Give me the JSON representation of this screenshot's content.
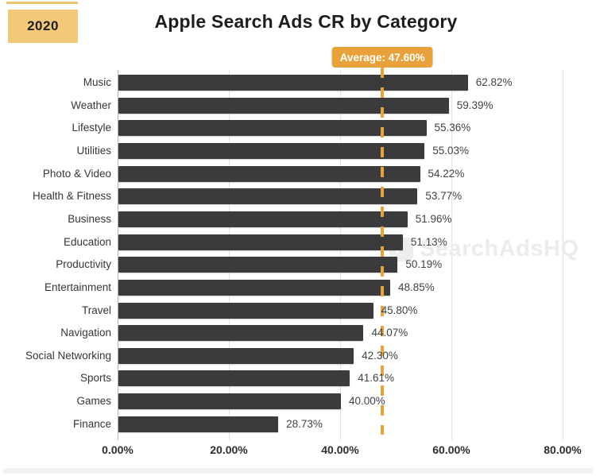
{
  "header": {
    "year_badge": "2020",
    "title": "Apple Search Ads CR by Category"
  },
  "average_badge": {
    "label": "Average: 47.60%"
  },
  "watermark": {
    "text": "SearchAdsHQ"
  },
  "chart_data": {
    "type": "bar",
    "orientation": "horizontal",
    "title": "Apple Search Ads CR by Category",
    "categories": [
      "Music",
      "Weather",
      "Lifestyle",
      "Utilities",
      "Photo & Video",
      "Health & Fitness",
      "Business",
      "Education",
      "Productivity",
      "Entertainment",
      "Travel",
      "Navigation",
      "Social Networking",
      "Sports",
      "Games",
      "Finance"
    ],
    "values": [
      62.82,
      59.39,
      55.36,
      55.03,
      54.22,
      53.77,
      51.96,
      51.13,
      50.19,
      48.85,
      45.8,
      44.07,
      42.3,
      41.61,
      40.0,
      28.73
    ],
    "value_labels": [
      "62.82%",
      "59.39%",
      "55.36%",
      "55.03%",
      "54.22%",
      "53.77%",
      "51.96%",
      "51.13%",
      "50.19%",
      "48.85%",
      "45.80%",
      "44.07%",
      "42.30%",
      "41.61%",
      "40.00%",
      "28.73%"
    ],
    "average": 47.6,
    "average_label": "Average: 47.60%",
    "x_ticks": [
      {
        "label": "0.00%",
        "value": 0
      },
      {
        "label": "20.00%",
        "value": 20
      },
      {
        "label": "40.00%",
        "value": 40
      },
      {
        "label": "60.00%",
        "value": 60
      },
      {
        "label": "80.00%",
        "value": 80
      }
    ],
    "xlim": [
      0,
      80
    ],
    "grid": "vertical-only",
    "legend": "none",
    "colors": {
      "bar": "#3b3b3d",
      "average": "#e9a23b",
      "year_badge_bg": "#f2c879",
      "grid": "#e4e4e4",
      "axis": "#b5b5b5"
    }
  }
}
